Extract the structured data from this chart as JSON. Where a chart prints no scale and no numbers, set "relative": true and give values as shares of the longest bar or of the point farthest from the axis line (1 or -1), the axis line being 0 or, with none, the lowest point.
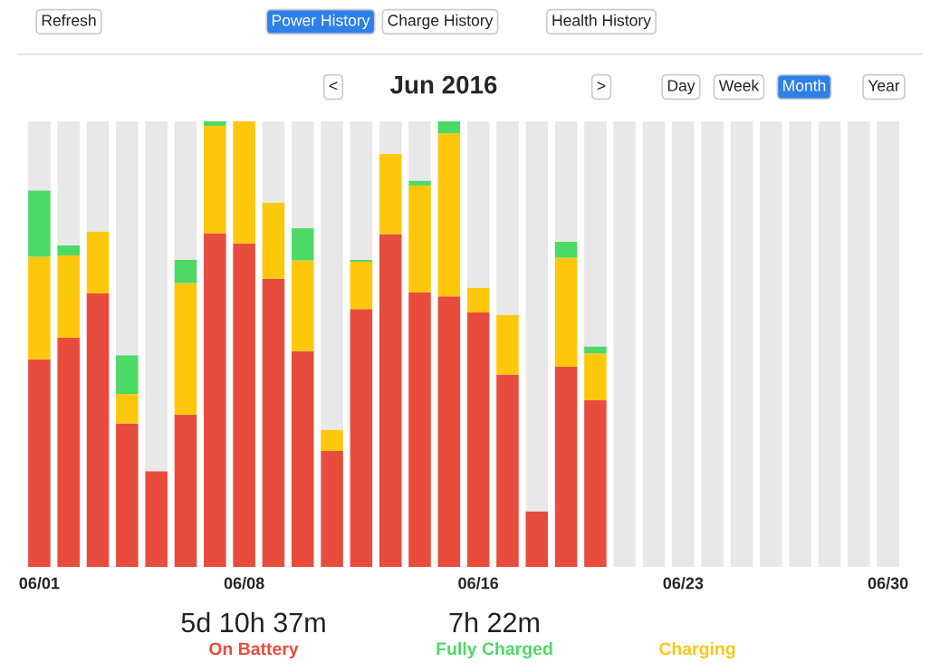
{
  "chart_data": {
    "type": "bar",
    "title": "Jun 2016",
    "stacked": true,
    "relative": true,
    "categories": [
      "06/01",
      null,
      null,
      null,
      null,
      null,
      null,
      "06/08",
      null,
      null,
      null,
      null,
      null,
      null,
      null,
      "06/16",
      null,
      null,
      null,
      null,
      null,
      null,
      "06/23",
      null,
      null,
      null,
      null,
      null,
      null,
      "06/30"
    ],
    "series": [
      {
        "name": "On Battery",
        "color": "#e84c3d",
        "values": [
          0.466,
          0.514,
          0.614,
          0.322,
          0.215,
          0.342,
          0.749,
          0.726,
          0.647,
          0.484,
          0.26,
          0.579,
          0.747,
          0.616,
          0.607,
          0.571,
          0.432,
          0.125,
          0.449,
          0.374,
          0,
          0,
          0,
          0,
          0,
          0,
          0,
          0,
          0,
          0
        ]
      },
      {
        "name": "Charging",
        "color": "#fdc70c",
        "values": [
          0.23,
          0.185,
          0.139,
          0.066,
          0,
          0.295,
          0.241,
          0.274,
          0.171,
          0.204,
          0.048,
          0.106,
          0.18,
          0.24,
          0.366,
          0.056,
          0.134,
          0,
          0.245,
          0.105,
          0,
          0,
          0,
          0,
          0,
          0,
          0,
          0,
          0,
          0
        ]
      },
      {
        "name": "Fully Charged",
        "color": "#4cd964",
        "values": [
          0.149,
          0.023,
          0,
          0.087,
          0,
          0.052,
          0.01,
          0,
          0,
          0.072,
          0,
          0.004,
          0,
          0.011,
          0.027,
          0,
          0,
          0,
          0.036,
          0.016,
          0,
          0,
          0,
          0,
          0,
          0,
          0,
          0,
          0,
          0
        ]
      },
      {
        "color": "#e8e8e8",
        "values": [
          0.155,
          0.278,
          0.247,
          0.525,
          0.785,
          0.311,
          0,
          0,
          0.182,
          0.24,
          0.692,
          0.311,
          0.073,
          0.133,
          0,
          0.373,
          0.434,
          0.875,
          0.27,
          0.505,
          1,
          1,
          1,
          1,
          1,
          1,
          1,
          1,
          1,
          1
        ]
      }
    ],
    "annotations": [
      "Refresh",
      "Power History",
      "Charge History",
      "Health History",
      "<",
      ">",
      "Day",
      "Week",
      "Month",
      "Year",
      "5d 10h 37m",
      "7h 22m"
    ],
    "grid": false,
    "legend": false
  }
}
